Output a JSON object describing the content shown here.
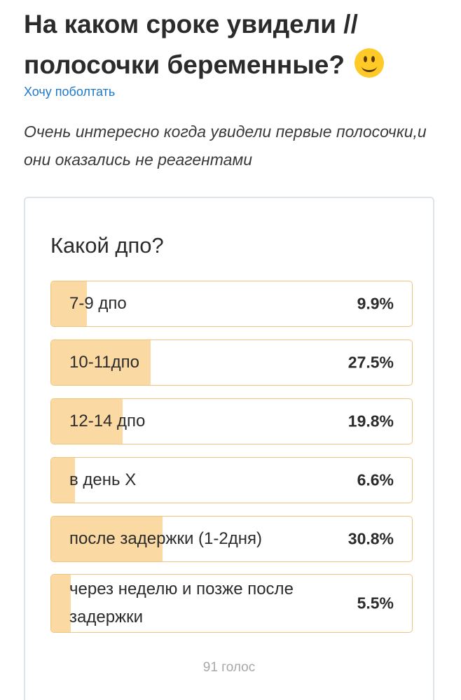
{
  "post": {
    "title": "На каком сроке увидели // полосочки беременные?",
    "emoji": "slightly-smiling-face-icon",
    "category": "Хочу поболтать",
    "description": "Очень интересно когда увидели первые полосочки,и они оказались не реагентами"
  },
  "poll": {
    "question": "Какой дпо?",
    "options": [
      {
        "label": "7-9 дпо",
        "percent_text": "9.9%",
        "percent": 9.9
      },
      {
        "label": "10-11дпо",
        "percent_text": "27.5%",
        "percent": 27.5
      },
      {
        "label": "12-14 дпо",
        "percent_text": "19.8%",
        "percent": 19.8
      },
      {
        "label": "в день Х",
        "percent_text": "6.6%",
        "percent": 6.6
      },
      {
        "label": "после задержки (1-2дня)",
        "percent_text": "30.8%",
        "percent": 30.8
      },
      {
        "label": "через неделю и позже после задержки",
        "percent_text": "5.5%",
        "percent": 5.5
      }
    ],
    "votes_text": "91 голос"
  },
  "colors": {
    "bar_fill": "#fbd9a3",
    "bar_border": "#f2c27f",
    "link": "#1f79c9"
  }
}
